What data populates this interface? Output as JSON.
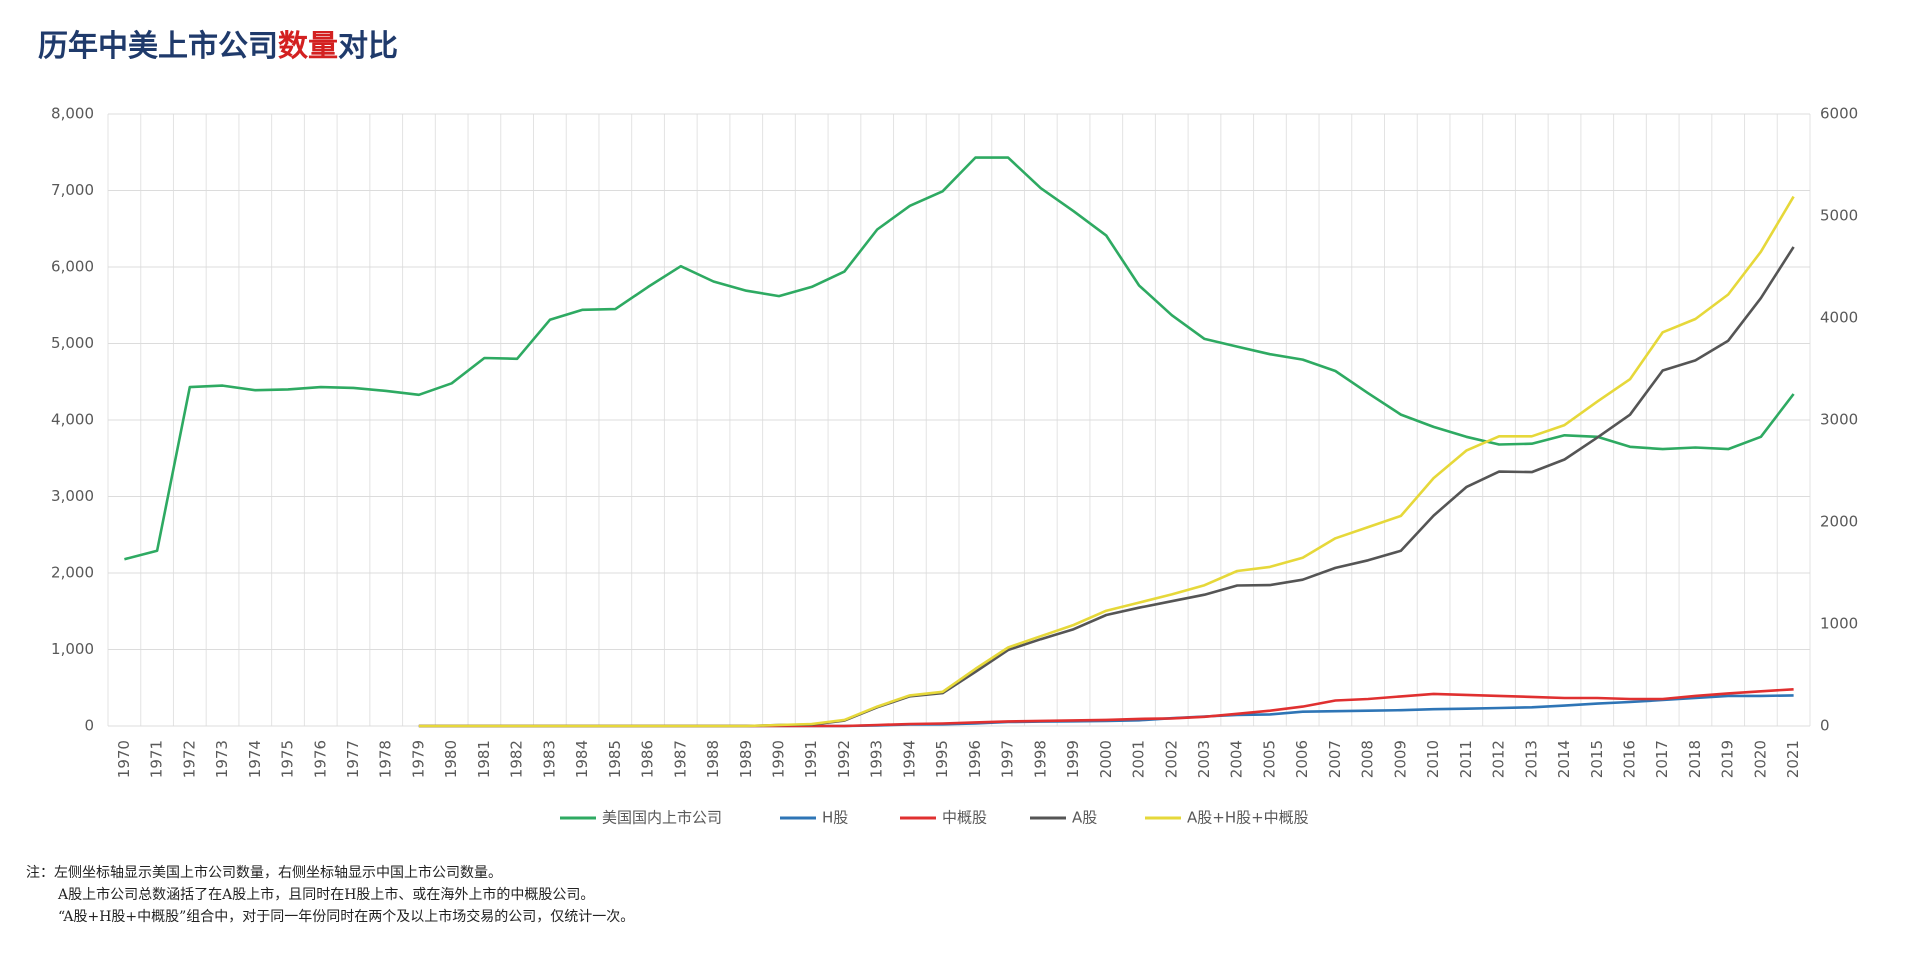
{
  "chart_data": {
    "type": "line",
    "title": {
      "before": "历年中美上市公司",
      "highlight": "数量",
      "after": "对比"
    },
    "categories": [
      "1970",
      "1971",
      "1972",
      "1973",
      "1974",
      "1975",
      "1976",
      "1977",
      "1978",
      "1979",
      "1980",
      "1981",
      "1982",
      "1983",
      "1984",
      "1985",
      "1986",
      "1987",
      "1988",
      "1989",
      "1990",
      "1991",
      "1992",
      "1993",
      "1994",
      "1995",
      "1996",
      "1997",
      "1998",
      "1999",
      "2000",
      "2001",
      "2002",
      "2003",
      "2004",
      "2005",
      "2006",
      "2007",
      "2008",
      "2009",
      "2010",
      "2011",
      "2012",
      "2013",
      "2014",
      "2015",
      "2016",
      "2017",
      "2018",
      "2019",
      "2020",
      "2021"
    ],
    "ylim": [
      0,
      8000
    ],
    "yticks": [
      0,
      {
        "value": 1000,
        "label": "1,000"
      },
      {
        "value": 2000,
        "label": "2,000"
      },
      {
        "value": 3000,
        "label": "3,000"
      },
      {
        "value": 4000,
        "label": "4,000"
      },
      {
        "value": 5000,
        "label": "5,000"
      },
      {
        "value": 6000,
        "label": "6,000"
      },
      {
        "value": 7000,
        "label": "7,000"
      },
      {
        "value": 8000,
        "label": "8,000"
      }
    ],
    "y2lim": [
      0,
      6000
    ],
    "y2ticks": [
      0,
      1000,
      2000,
      3000,
      4000,
      5000,
      6000
    ],
    "grid": true,
    "legend": "bottom",
    "series": [
      {
        "name": "美国国内上市公司",
        "color": "#2eaa62",
        "axis": "y",
        "values": [
          2180,
          2290,
          4430,
          4450,
          4390,
          4400,
          4430,
          4420,
          4380,
          4330,
          4480,
          4810,
          4800,
          5310,
          5440,
          5450,
          5740,
          6010,
          5810,
          5690,
          5620,
          5740,
          5940,
          6490,
          6800,
          6990,
          7430,
          7430,
          7030,
          6730,
          6410,
          5760,
          5370,
          5060,
          4960,
          4860,
          4790,
          4640,
          4350,
          4070,
          3910,
          3780,
          3680,
          3690,
          3800,
          3780,
          3650,
          3620,
          3640,
          3620,
          3780,
          4340
        ]
      },
      {
        "name": "H股",
        "color": "#2e75b6",
        "axis": "y2",
        "values": [
          null,
          null,
          null,
          null,
          null,
          null,
          null,
          null,
          null,
          0,
          0,
          0,
          0,
          0,
          0,
          0,
          0,
          0,
          0,
          0,
          0,
          0,
          0,
          6,
          15,
          17,
          25,
          39,
          43,
          46,
          50,
          56,
          76,
          93,
          109,
          114,
          140,
          145,
          150,
          155,
          165,
          170,
          176,
          183,
          200,
          220,
          235,
          255,
          275,
          295,
          295,
          300
        ]
      },
      {
        "name": "中概股",
        "color": "#e03030",
        "axis": "y2",
        "values": [
          null,
          null,
          null,
          null,
          null,
          null,
          null,
          null,
          null,
          0,
          0,
          0,
          0,
          0,
          0,
          0,
          0,
          0,
          0,
          0,
          0,
          0,
          0,
          10,
          20,
          25,
          35,
          45,
          50,
          55,
          60,
          70,
          75,
          90,
          120,
          150,
          190,
          250,
          265,
          290,
          315,
          305,
          295,
          285,
          275,
          275,
          265,
          265,
          295,
          320,
          340,
          360
        ]
      },
      {
        "name": "A股",
        "color": "#555555",
        "axis": "y2",
        "values": [
          null,
          null,
          null,
          null,
          null,
          null,
          null,
          null,
          null,
          0,
          0,
          0,
          0,
          0,
          0,
          0,
          0,
          0,
          0,
          0,
          10,
          14,
          53,
          183,
          291,
          323,
          530,
          745,
          851,
          949,
          1088,
          1160,
          1224,
          1287,
          1377,
          1381,
          1434,
          1550,
          1625,
          1718,
          2063,
          2342,
          2494,
          2489,
          2613,
          2827,
          3052,
          3485,
          3584,
          3777,
          4195,
          4697
        ]
      },
      {
        "name": "A股+H股+中概股",
        "color": "#e6d83a",
        "axis": "y2",
        "values": [
          null,
          null,
          null,
          null,
          null,
          null,
          null,
          null,
          null,
          0,
          0,
          0,
          0,
          0,
          0,
          0,
          0,
          0,
          0,
          0,
          10,
          20,
          60,
          190,
          300,
          335,
          560,
          770,
          880,
          990,
          1130,
          1210,
          1290,
          1380,
          1520,
          1560,
          1650,
          1840,
          1950,
          2060,
          2430,
          2700,
          2840,
          2840,
          2950,
          3180,
          3400,
          3860,
          3990,
          4230,
          4650,
          5190
        ]
      }
    ]
  },
  "notes": [
    "注：左侧坐标轴显示美国上市公司数量，右侧坐标轴显示中国上市公司数量。",
    "A股上市公司总数涵括了在A股上市，且同时在H股上市、或在海外上市的中概股公司。",
    "“A股+H股+中概股”组合中，对于同一年份同时在两个及以上市场交易的公司，仅统计一次。"
  ]
}
